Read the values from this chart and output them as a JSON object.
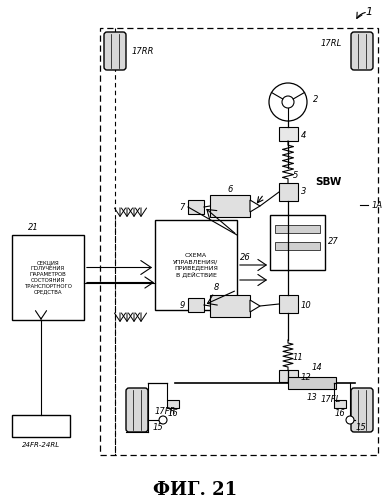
{
  "title": "ФИГ. 21",
  "title_fontsize": 13,
  "background_color": "#ffffff",
  "label_1": "1",
  "label_1A": "1A",
  "label_2": "2",
  "label_3": "3",
  "label_4": "4",
  "label_5": "5",
  "label_6": "6",
  "label_7": "7",
  "label_8": "8",
  "label_9": "9",
  "label_10": "10",
  "label_11": "11",
  "label_12": "12",
  "label_13": "13",
  "label_14": "14",
  "label_15": "15",
  "label_16": "16",
  "label_17FR": "17FR",
  "label_17FL": "17FL",
  "label_17RR": "17RR",
  "label_17RL": "17RL",
  "label_21": "21",
  "label_24": "24FR-24RL",
  "label_26": "26",
  "label_27": "27",
  "label_SBW": "SBW",
  "ctrl_text": "СХЕМА\nУПРАВЛЕНИЯ/\nПРИВЕДЕНИЯ\nВ ДЕЙСТВИЕ",
  "sect_text": "СЕКЦИЯ\nПОЛУЧЕНИЯ\nПАРАМЕТРОВ\nСОСТОЯНИЯ\nТРАНСПОРТНОГО\nСРЕДСТВА"
}
